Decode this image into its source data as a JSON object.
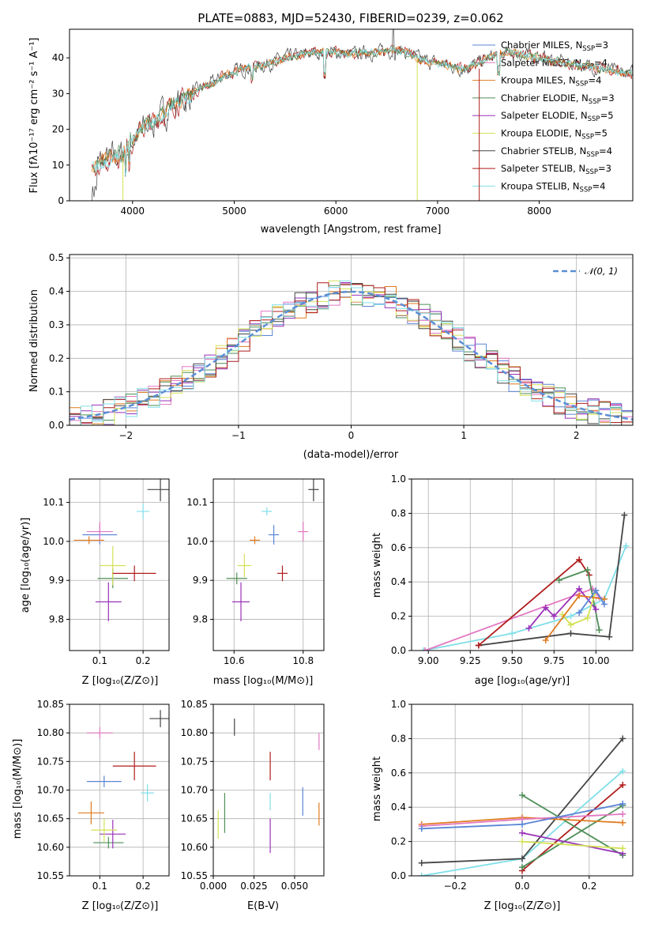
{
  "colors": {
    "chabrier_miles": "#5b85d6",
    "salpeter_miles": "#e377c2",
    "kroupa_miles": "#e07b1f",
    "chabrier_elodie": "#4f8f58",
    "salpeter_elodie": "#9932b8",
    "kroupa_elodie": "#d4e157",
    "chabrier_stelib": "#444444",
    "salpeter_stelib": "#b01c1c",
    "kroupa_stelib": "#80dfe8",
    "gaussian": "#5b8fd6"
  },
  "chart_data": [
    {
      "type": "line",
      "title": "PLATE=0883, MJD=52430, FIBERID=0239, z=0.062",
      "xlabel": "wavelength [Angstrom, rest frame]",
      "ylabel": "Flux [fλ10⁻¹⁷ erg cm⁻² s⁻¹ A⁻¹]",
      "xlim": [
        3380,
        8920
      ],
      "ylim": [
        0,
        48
      ],
      "xticks": [
        4000,
        5000,
        6000,
        7000,
        8000
      ],
      "yticks": [
        0,
        10,
        20,
        30,
        40
      ],
      "legend_position": "upper-right",
      "legend": [
        {
          "main": "Chabrier MILES, N",
          "sub": "SSP",
          "tail": "=3",
          "color_key": "chabrier_miles"
        },
        {
          "main": "Salpeter MILES, N",
          "sub": "SSP",
          "tail": "=4",
          "color_key": "salpeter_miles"
        },
        {
          "main": "Kroupa MILES, N",
          "sub": "SSP",
          "tail": "=4",
          "color_key": "kroupa_miles"
        },
        {
          "main": "Chabrier ELODIE, N",
          "sub": "SSP",
          "tail": "=3",
          "color_key": "chabrier_elodie"
        },
        {
          "main": "Salpeter ELODIE, N",
          "sub": "SSP",
          "tail": "=5",
          "color_key": "salpeter_elodie"
        },
        {
          "main": "Kroupa ELODIE, N",
          "sub": "SSP",
          "tail": "=5",
          "color_key": "kroupa_elodie"
        },
        {
          "main": "Chabrier STELIB, N",
          "sub": "SSP",
          "tail": "=4",
          "color_key": "chabrier_stelib"
        },
        {
          "main": "Salpeter STELIB, N",
          "sub": "SSP",
          "tail": "=3",
          "color_key": "salpeter_stelib"
        },
        {
          "main": "Kroupa STELIB, N",
          "sub": "SSP",
          "tail": "=4",
          "color_key": "kroupa_stelib"
        }
      ],
      "spectrum_x": [
        3600,
        3700,
        3800,
        3900,
        4000,
        4100,
        4200,
        4300,
        4400,
        4500,
        4600,
        4700,
        4800,
        4900,
        5000,
        5100,
        5200,
        5300,
        5400,
        5500,
        5600,
        5700,
        5800,
        5900,
        6000,
        6100,
        6200,
        6300,
        6400,
        6500,
        6600,
        6700,
        6800,
        6900,
        7000,
        7100,
        7200,
        7300,
        7400,
        7500,
        7600,
        7700,
        7800,
        7900,
        8000,
        8100,
        8200,
        8300,
        8400,
        8500,
        8600,
        8700,
        8800,
        8920
      ],
      "spectrum_y": [
        9,
        11,
        12,
        13,
        17,
        20,
        22,
        24,
        27,
        28,
        30,
        32,
        33,
        35,
        36,
        37,
        37.5,
        38,
        39,
        40,
        40.5,
        41,
        41.5,
        41.5,
        41.5,
        41,
        41,
        41.5,
        41.5,
        42,
        42,
        41.5,
        40,
        39,
        38.5,
        38,
        37,
        37.5,
        38.5,
        40,
        41,
        41.5,
        41,
        40.5,
        40,
        39.5,
        39,
        38.5,
        38,
        37.5,
        37,
        36.5,
        36,
        35.5
      ]
    },
    {
      "type": "histogram",
      "xlabel": "(data-model)/error",
      "ylabel": "Normed distribution",
      "xlim": [
        -2.5,
        2.5
      ],
      "ylim": [
        0,
        0.51
      ],
      "xticks": [
        -2,
        -1,
        0,
        1,
        2
      ],
      "yticks": [
        0.0,
        0.1,
        0.2,
        0.3,
        0.4,
        0.5
      ],
      "legend_label": "𝒩(0, 1)",
      "bin_width": 0.1
    },
    {
      "type": "scatter",
      "xlabel": "Z [log₁₀(Z/Z⊙)]",
      "ylabel": "age  [log₁₀(age/yr)]",
      "xlim": [
        0.03,
        0.26
      ],
      "ylim": [
        9.72,
        10.16
      ],
      "xticks": [
        0.1,
        0.2
      ],
      "yticks": [
        9.8,
        9.9,
        10.0,
        10.1
      ],
      "points": [
        {
          "k": "chabrier_miles",
          "x": 0.1,
          "y": 10.017,
          "ex": 0.08,
          "ey": 0.05
        },
        {
          "k": "salpeter_miles",
          "x": 0.1,
          "y": 10.025,
          "ex": 0.06,
          "ey": 0.05
        },
        {
          "k": "kroupa_miles",
          "x": 0.075,
          "y": 10.003,
          "ex": 0.07,
          "ey": 0.02
        },
        {
          "k": "chabrier_elodie",
          "x": 0.13,
          "y": 9.905,
          "ex": 0.07,
          "ey": 0.05
        },
        {
          "k": "salpeter_elodie",
          "x": 0.12,
          "y": 9.845,
          "ex": 0.06,
          "ey": 0.1
        },
        {
          "k": "kroupa_elodie",
          "x": 0.13,
          "y": 9.938,
          "ex": 0.06,
          "ey": 0.1
        },
        {
          "k": "chabrier_stelib",
          "x": 0.24,
          "y": 10.133,
          "ex": 0.06,
          "ey": 0.06
        },
        {
          "k": "salpeter_stelib",
          "x": 0.18,
          "y": 9.918,
          "ex": 0.1,
          "ey": 0.04
        },
        {
          "k": "kroupa_stelib",
          "x": 0.2,
          "y": 10.077,
          "ex": 0.03,
          "ey": 0.04
        }
      ]
    },
    {
      "type": "scatter",
      "xlabel": "mass [log₁₀(M/M⊙)]",
      "ylabel": "",
      "xlim": [
        10.54,
        10.86
      ],
      "ylim": [
        9.72,
        10.16
      ],
      "xticks": [
        10.6,
        10.8
      ],
      "yticks": [
        9.8,
        9.9,
        10.0,
        10.1
      ],
      "points": [
        {
          "k": "chabrier_miles",
          "x": 10.715,
          "y": 10.017,
          "ex": 0.03,
          "ey": 0.05
        },
        {
          "k": "salpeter_miles",
          "x": 10.8,
          "y": 10.025,
          "ex": 0.03,
          "ey": 0.05
        },
        {
          "k": "kroupa_miles",
          "x": 10.66,
          "y": 10.003,
          "ex": 0.03,
          "ey": 0.02
        },
        {
          "k": "chabrier_elodie",
          "x": 10.608,
          "y": 9.905,
          "ex": 0.06,
          "ey": 0.03
        },
        {
          "k": "salpeter_elodie",
          "x": 10.62,
          "y": 9.845,
          "ex": 0.05,
          "ey": 0.1
        },
        {
          "k": "kroupa_elodie",
          "x": 10.63,
          "y": 9.938,
          "ex": 0.04,
          "ey": 0.06
        },
        {
          "k": "chabrier_stelib",
          "x": 10.83,
          "y": 10.133,
          "ex": 0.03,
          "ey": 0.06
        },
        {
          "k": "salpeter_stelib",
          "x": 10.74,
          "y": 9.918,
          "ex": 0.03,
          "ey": 0.04
        },
        {
          "k": "kroupa_stelib",
          "x": 10.695,
          "y": 10.077,
          "ex": 0.03,
          "ey": 0.02
        }
      ]
    },
    {
      "type": "line",
      "xlabel": "age  [log₁₀(age/yr)]",
      "ylabel": "mass weight",
      "xlim": [
        8.9,
        10.22
      ],
      "ylim": [
        0,
        1
      ],
      "xticks": [
        9.0,
        9.25,
        9.5,
        9.75,
        10.0
      ],
      "yticks": [
        0.0,
        0.2,
        0.4,
        0.6,
        0.8,
        1.0
      ],
      "series": [
        {
          "k": "kroupa_stelib",
          "x": [
            8.97,
            9.5,
            9.85,
            10.05,
            10.18
          ],
          "y": [
            0.0,
            0.1,
            0.2,
            0.3,
            0.61
          ]
        },
        {
          "k": "salpeter_miles",
          "x": [
            8.98,
            9.98,
            10.02
          ],
          "y": [
            0.0,
            0.36,
            0.31
          ]
        },
        {
          "k": "chabrier_stelib",
          "x": [
            9.3,
            9.85,
            10.08,
            10.17
          ],
          "y": [
            0.03,
            0.1,
            0.08,
            0.79
          ]
        },
        {
          "k": "salpeter_stelib",
          "x": [
            9.3,
            9.9,
            9.96
          ],
          "y": [
            0.03,
            0.53,
            0.44
          ]
        },
        {
          "k": "chabrier_elodie",
          "x": [
            9.78,
            9.95,
            10.02
          ],
          "y": [
            0.41,
            0.47,
            0.12
          ]
        },
        {
          "k": "salpeter_elodie",
          "x": [
            9.6,
            9.7,
            9.75,
            9.9,
            10.0
          ],
          "y": [
            0.13,
            0.25,
            0.2,
            0.36,
            0.24
          ]
        },
        {
          "k": "kroupa_elodie",
          "x": [
            9.8,
            9.85,
            9.95,
            10.0
          ],
          "y": [
            0.21,
            0.15,
            0.19,
            0.35
          ]
        },
        {
          "k": "kroupa_miles",
          "x": [
            9.7,
            9.9,
            10.05
          ],
          "y": [
            0.06,
            0.32,
            0.3
          ]
        },
        {
          "k": "chabrier_miles",
          "x": [
            9.9,
            10.0,
            10.05
          ],
          "y": [
            0.22,
            0.35,
            0.27
          ]
        }
      ]
    },
    {
      "type": "scatter",
      "xlabel": "Z [log₁₀(Z/Z⊙)]",
      "ylabel": "mass [log₁₀(M/M⊙)]",
      "xlim": [
        0.03,
        0.26
      ],
      "ylim": [
        10.55,
        10.85
      ],
      "xticks": [
        0.1,
        0.2
      ],
      "yticks": [
        10.55,
        10.6,
        10.65,
        10.7,
        10.75,
        10.8,
        10.85
      ],
      "points": [
        {
          "k": "chabrier_miles",
          "x": 0.11,
          "y": 10.715,
          "ex": 0.08,
          "ey": 0.02
        },
        {
          "k": "salpeter_miles",
          "x": 0.1,
          "y": 10.8,
          "ex": 0.06,
          "ey": 0.02
        },
        {
          "k": "kroupa_miles",
          "x": 0.08,
          "y": 10.66,
          "ex": 0.06,
          "ey": 0.04
        },
        {
          "k": "chabrier_elodie",
          "x": 0.12,
          "y": 10.608,
          "ex": 0.07,
          "ey": 0.02
        },
        {
          "k": "salpeter_elodie",
          "x": 0.13,
          "y": 10.623,
          "ex": 0.06,
          "ey": 0.05
        },
        {
          "k": "kroupa_elodie",
          "x": 0.11,
          "y": 10.63,
          "ex": 0.06,
          "ey": 0.04
        },
        {
          "k": "chabrier_stelib",
          "x": 0.24,
          "y": 10.825,
          "ex": 0.05,
          "ey": 0.03
        },
        {
          "k": "salpeter_stelib",
          "x": 0.18,
          "y": 10.742,
          "ex": 0.1,
          "ey": 0.05
        },
        {
          "k": "kroupa_stelib",
          "x": 0.21,
          "y": 10.695,
          "ex": 0.03,
          "ey": 0.03
        }
      ]
    },
    {
      "type": "scatter",
      "xlabel": "E(B-V)",
      "ylabel": "",
      "xlim": [
        0.0,
        0.068
      ],
      "ylim": [
        10.55,
        10.85
      ],
      "xticks": [
        0.0,
        0.025,
        0.05
      ],
      "yticks": [
        10.55,
        10.6,
        10.65,
        10.7,
        10.75,
        10.8,
        10.85
      ],
      "points": [
        {
          "k": "chabrier_miles",
          "x": 0.055,
          "y": 10.68,
          "ex": 0,
          "ey": 0.05
        },
        {
          "k": "salpeter_miles",
          "x": 0.065,
          "y": 10.785,
          "ex": 0,
          "ey": 0.03
        },
        {
          "k": "kroupa_miles",
          "x": 0.065,
          "y": 10.658,
          "ex": 0,
          "ey": 0.04
        },
        {
          "k": "chabrier_elodie",
          "x": 0.007,
          "y": 10.66,
          "ex": 0,
          "ey": 0.07
        },
        {
          "k": "salpeter_elodie",
          "x": 0.035,
          "y": 10.62,
          "ex": 0,
          "ey": 0.06
        },
        {
          "k": "kroupa_elodie",
          "x": 0.003,
          "y": 10.64,
          "ex": 0,
          "ey": 0.05
        },
        {
          "k": "chabrier_stelib",
          "x": 0.013,
          "y": 10.81,
          "ex": 0,
          "ey": 0.03
        },
        {
          "k": "salpeter_stelib",
          "x": 0.035,
          "y": 10.742,
          "ex": 0,
          "ey": 0.05
        },
        {
          "k": "kroupa_stelib",
          "x": 0.035,
          "y": 10.68,
          "ex": 0,
          "ey": 0.03
        }
      ]
    },
    {
      "type": "line",
      "xlabel": "Z [log₁₀(Z/Z⊙)]",
      "ylabel": "mass weight",
      "xlim": [
        -0.33,
        0.33
      ],
      "ylim": [
        0,
        1
      ],
      "xticks": [
        -0.2,
        0.0,
        0.2
      ],
      "yticks": [
        0.0,
        0.2,
        0.4,
        0.6,
        0.8,
        1.0
      ],
      "series": [
        {
          "k": "kroupa_stelib",
          "x": [
            -0.3,
            0.0,
            0.3
          ],
          "y": [
            0.0,
            0.1,
            0.61
          ]
        },
        {
          "k": "chabrier_stelib",
          "x": [
            -0.3,
            0.0,
            0.3
          ],
          "y": [
            0.075,
            0.1,
            0.8
          ]
        },
        {
          "k": "salpeter_stelib",
          "x": [
            0.0,
            0.3
          ],
          "y": [
            0.03,
            0.53
          ]
        },
        {
          "k": "chabrier_elodie",
          "x": [
            0.0,
            0.3
          ],
          "y": [
            0.47,
            0.12
          ]
        },
        {
          "k": "chabrier_elodie",
          "x": [
            0.0,
            0.3
          ],
          "y": [
            0.05,
            0.41
          ]
        },
        {
          "k": "salpeter_elodie",
          "x": [
            0.0,
            0.3
          ],
          "y": [
            0.25,
            0.13
          ]
        },
        {
          "k": "kroupa_elodie",
          "x": [
            0.0,
            0.3
          ],
          "y": [
            0.2,
            0.16
          ]
        },
        {
          "k": "kroupa_miles",
          "x": [
            -0.3,
            0.0,
            0.3
          ],
          "y": [
            0.3,
            0.34,
            0.31
          ]
        },
        {
          "k": "salpeter_miles",
          "x": [
            -0.3,
            0.0,
            0.3
          ],
          "y": [
            0.29,
            0.33,
            0.36
          ]
        },
        {
          "k": "chabrier_miles",
          "x": [
            -0.3,
            0.0,
            0.3
          ],
          "y": [
            0.275,
            0.3,
            0.42
          ]
        }
      ]
    }
  ]
}
